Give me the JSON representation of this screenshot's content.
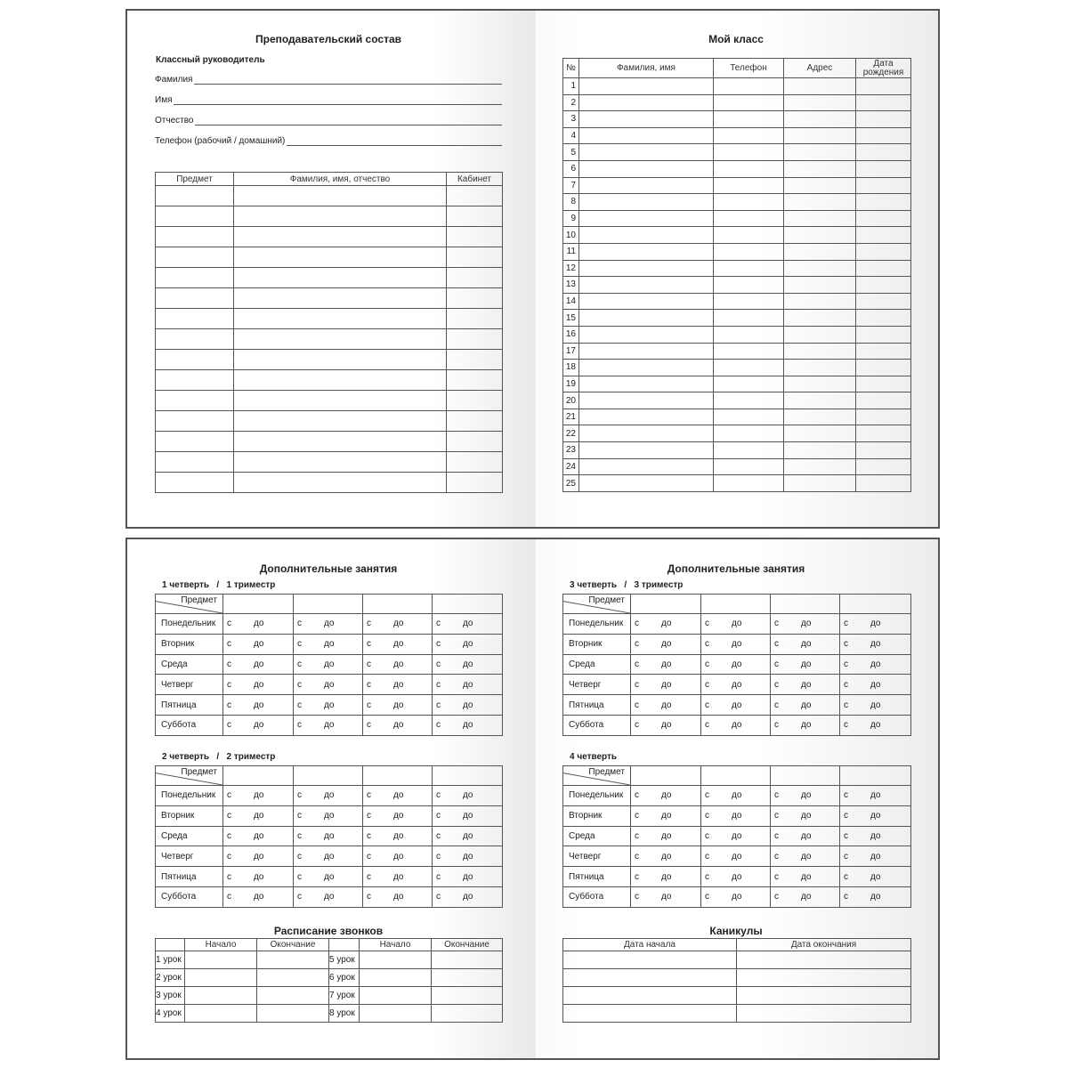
{
  "staff_page": {
    "title": "Преподавательский состав",
    "class_teacher_label": "Классный руководитель",
    "fields": [
      "Фамилия",
      "Имя",
      "Отчество",
      "Телефон (рабочий / домашний)"
    ],
    "table": {
      "headers": [
        "Предмет",
        "Фамилия, имя, отчество",
        "Кабинет"
      ],
      "row_count": 15
    }
  },
  "class_page": {
    "title": "Мой класс",
    "table": {
      "headers": [
        "№",
        "Фамилия, имя",
        "Телефон",
        "Адрес",
        "Дата рождения"
      ],
      "rows": [
        "1",
        "2",
        "3",
        "4",
        "5",
        "6",
        "7",
        "8",
        "9",
        "10",
        "11",
        "12",
        "13",
        "14",
        "15",
        "16",
        "17",
        "18",
        "19",
        "20",
        "21",
        "22",
        "23",
        "24",
        "25"
      ]
    }
  },
  "extra_left": {
    "title": "Дополнительные занятия",
    "blocks": [
      {
        "label": "1 четверть   /   1 триместр"
      },
      {
        "label": "2 четверть   /   2 триместр"
      }
    ]
  },
  "extra_right": {
    "title": "Дополнительные занятия",
    "blocks": [
      {
        "label": "3 четверть   /   3 триместр"
      },
      {
        "label": "4 четверть"
      }
    ]
  },
  "schedule_common": {
    "subject_header": "Предмет",
    "days": [
      "Понедельник",
      "Вторник",
      "Среда",
      "Четверг",
      "Пятница",
      "Суббота"
    ],
    "from": "с",
    "to": "до"
  },
  "bells": {
    "title": "Расписание звонков",
    "headers": [
      "",
      "Начало",
      "Окончание",
      "",
      "Начало",
      "Окончание"
    ],
    "rows": [
      [
        "1 урок",
        "5 урок"
      ],
      [
        "2 урок",
        "6 урок"
      ],
      [
        "3 урок",
        "7 урок"
      ],
      [
        "4 урок",
        "8 урок"
      ]
    ]
  },
  "holidays": {
    "title": "Каникулы",
    "headers": [
      "Дата начала",
      "Дата окончания"
    ],
    "row_count": 4
  }
}
